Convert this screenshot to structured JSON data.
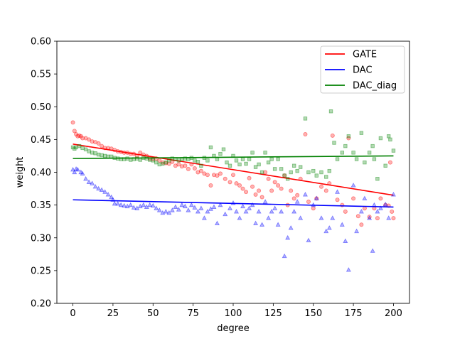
{
  "chart_data": {
    "type": "scatter",
    "title": "",
    "xlabel": "degree",
    "ylabel": "weight",
    "xlim": [
      -10,
      210
    ],
    "ylim": [
      0.2,
      0.6
    ],
    "xticks": [
      "0",
      "25",
      "50",
      "75",
      "100",
      "125",
      "150",
      "175",
      "200"
    ],
    "yticks": [
      "0.20",
      "0.25",
      "0.30",
      "0.35",
      "0.40",
      "0.45",
      "0.50",
      "0.55",
      "0.60"
    ],
    "legend_position": "top-right",
    "series": [
      {
        "name": "GATE",
        "color": "#ff0000",
        "marker": "circle",
        "trend": [
          [
            0,
            0.443
          ],
          [
            200,
            0.365
          ]
        ],
        "points": [
          [
            0,
            0.476
          ],
          [
            1,
            0.463
          ],
          [
            2,
            0.458
          ],
          [
            3,
            0.455
          ],
          [
            4,
            0.456
          ],
          [
            5,
            0.455
          ],
          [
            6,
            0.452
          ],
          [
            8,
            0.452
          ],
          [
            10,
            0.45
          ],
          [
            12,
            0.447
          ],
          [
            14,
            0.446
          ],
          [
            16,
            0.444
          ],
          [
            18,
            0.44
          ],
          [
            20,
            0.437
          ],
          [
            22,
            0.437
          ],
          [
            24,
            0.436
          ],
          [
            26,
            0.434
          ],
          [
            28,
            0.432
          ],
          [
            30,
            0.431
          ],
          [
            32,
            0.43
          ],
          [
            34,
            0.43
          ],
          [
            36,
            0.428
          ],
          [
            38,
            0.428
          ],
          [
            40,
            0.425
          ],
          [
            42,
            0.43
          ],
          [
            44,
            0.427
          ],
          [
            46,
            0.425
          ],
          [
            48,
            0.421
          ],
          [
            50,
            0.42
          ],
          [
            52,
            0.421
          ],
          [
            54,
            0.418
          ],
          [
            56,
            0.415
          ],
          [
            58,
            0.414
          ],
          [
            60,
            0.413
          ],
          [
            62,
            0.416
          ],
          [
            64,
            0.41
          ],
          [
            66,
            0.412
          ],
          [
            68,
            0.409
          ],
          [
            70,
            0.41
          ],
          [
            72,
            0.405
          ],
          [
            74,
            0.412
          ],
          [
            76,
            0.406
          ],
          [
            78,
            0.4
          ],
          [
            80,
            0.402
          ],
          [
            82,
            0.398
          ],
          [
            84,
            0.396
          ],
          [
            86,
            0.38
          ],
          [
            88,
            0.396
          ],
          [
            90,
            0.395
          ],
          [
            92,
            0.398
          ],
          [
            95,
            0.39
          ],
          [
            98,
            0.385
          ],
          [
            100,
            0.396
          ],
          [
            102,
            0.383
          ],
          [
            104,
            0.38
          ],
          [
            106,
            0.375
          ],
          [
            108,
            0.37
          ],
          [
            110,
            0.391
          ],
          [
            112,
            0.378
          ],
          [
            114,
            0.366
          ],
          [
            116,
            0.372
          ],
          [
            118,
            0.362
          ],
          [
            120,
            0.4
          ],
          [
            122,
            0.39
          ],
          [
            124,
            0.372
          ],
          [
            126,
            0.385
          ],
          [
            128,
            0.38
          ],
          [
            130,
            0.375
          ],
          [
            132,
            0.395
          ],
          [
            134,
            0.35
          ],
          [
            136,
            0.372
          ],
          [
            138,
            0.36
          ],
          [
            140,
            0.365
          ],
          [
            142,
            0.39
          ],
          [
            145,
            0.458
          ],
          [
            147,
            0.355
          ],
          [
            150,
            0.345
          ],
          [
            152,
            0.36
          ],
          [
            155,
            0.378
          ],
          [
            158,
            0.372
          ],
          [
            160,
            0.383
          ],
          [
            162,
            0.456
          ],
          [
            165,
            0.358
          ],
          [
            168,
            0.35
          ],
          [
            170,
            0.34
          ],
          [
            172,
            0.452
          ],
          [
            175,
            0.36
          ],
          [
            178,
            0.333
          ],
          [
            180,
            0.32
          ],
          [
            182,
            0.345
          ],
          [
            185,
            0.332
          ],
          [
            188,
            0.345
          ],
          [
            190,
            0.33
          ],
          [
            192,
            0.36
          ],
          [
            195,
            0.35
          ],
          [
            197,
            0.349
          ],
          [
            198,
            0.415
          ],
          [
            199,
            0.34
          ],
          [
            200,
            0.33
          ]
        ]
      },
      {
        "name": "DAC",
        "color": "#0000ff",
        "marker": "triangle",
        "trend": [
          [
            0,
            0.358
          ],
          [
            200,
            0.347
          ]
        ],
        "points": [
          [
            0,
            0.404
          ],
          [
            1,
            0.4
          ],
          [
            2,
            0.405
          ],
          [
            3,
            0.404
          ],
          [
            5,
            0.4
          ],
          [
            6,
            0.398
          ],
          [
            8,
            0.39
          ],
          [
            10,
            0.385
          ],
          [
            12,
            0.383
          ],
          [
            14,
            0.378
          ],
          [
            16,
            0.375
          ],
          [
            18,
            0.373
          ],
          [
            20,
            0.37
          ],
          [
            22,
            0.366
          ],
          [
            24,
            0.362
          ],
          [
            25,
            0.358
          ],
          [
            26,
            0.352
          ],
          [
            28,
            0.352
          ],
          [
            30,
            0.35
          ],
          [
            32,
            0.349
          ],
          [
            34,
            0.348
          ],
          [
            36,
            0.35
          ],
          [
            38,
            0.346
          ],
          [
            40,
            0.345
          ],
          [
            42,
            0.348
          ],
          [
            44,
            0.35
          ],
          [
            46,
            0.347
          ],
          [
            48,
            0.35
          ],
          [
            50,
            0.349
          ],
          [
            52,
            0.345
          ],
          [
            54,
            0.342
          ],
          [
            56,
            0.338
          ],
          [
            58,
            0.34
          ],
          [
            60,
            0.338
          ],
          [
            62,
            0.342
          ],
          [
            64,
            0.347
          ],
          [
            66,
            0.343
          ],
          [
            68,
            0.35
          ],
          [
            70,
            0.348
          ],
          [
            72,
            0.342
          ],
          [
            74,
            0.35
          ],
          [
            76,
            0.346
          ],
          [
            78,
            0.34
          ],
          [
            80,
            0.345
          ],
          [
            82,
            0.33
          ],
          [
            84,
            0.34
          ],
          [
            86,
            0.344
          ],
          [
            88,
            0.347
          ],
          [
            90,
            0.322
          ],
          [
            92,
            0.35
          ],
          [
            95,
            0.336
          ],
          [
            98,
            0.345
          ],
          [
            100,
            0.353
          ],
          [
            102,
            0.34
          ],
          [
            104,
            0.33
          ],
          [
            106,
            0.348
          ],
          [
            108,
            0.34
          ],
          [
            110,
            0.345
          ],
          [
            112,
            0.35
          ],
          [
            114,
            0.322
          ],
          [
            116,
            0.34
          ],
          [
            118,
            0.32
          ],
          [
            120,
            0.355
          ],
          [
            122,
            0.33
          ],
          [
            124,
            0.34
          ],
          [
            126,
            0.345
          ],
          [
            128,
            0.32
          ],
          [
            130,
            0.34
          ],
          [
            132,
            0.272
          ],
          [
            134,
            0.3
          ],
          [
            136,
            0.315
          ],
          [
            138,
            0.34
          ],
          [
            140,
            0.355
          ],
          [
            142,
            0.33
          ],
          [
            145,
            0.366
          ],
          [
            147,
            0.296
          ],
          [
            150,
            0.35
          ],
          [
            152,
            0.36
          ],
          [
            155,
            0.33
          ],
          [
            158,
            0.31
          ],
          [
            160,
            0.315
          ],
          [
            162,
            0.33
          ],
          [
            165,
            0.37
          ],
          [
            168,
            0.32
          ],
          [
            170,
            0.295
          ],
          [
            172,
            0.251
          ],
          [
            175,
            0.38
          ],
          [
            177,
            0.31
          ],
          [
            180,
            0.34
          ],
          [
            182,
            0.36
          ],
          [
            185,
            0.33
          ],
          [
            187,
            0.28
          ],
          [
            188,
            0.35
          ],
          [
            190,
            0.34
          ],
          [
            192,
            0.345
          ],
          [
            195,
            0.351
          ],
          [
            197,
            0.33
          ],
          [
            200,
            0.366
          ]
        ]
      },
      {
        "name": "DAC_diag",
        "color": "#008000",
        "marker": "square",
        "trend": [
          [
            0,
            0.421
          ],
          [
            200,
            0.425
          ]
        ],
        "points": [
          [
            0,
            0.438
          ],
          [
            1,
            0.436
          ],
          [
            2,
            0.438
          ],
          [
            4,
            0.44
          ],
          [
            6,
            0.437
          ],
          [
            8,
            0.435
          ],
          [
            10,
            0.432
          ],
          [
            12,
            0.43
          ],
          [
            14,
            0.429
          ],
          [
            16,
            0.427
          ],
          [
            18,
            0.426
          ],
          [
            20,
            0.425
          ],
          [
            22,
            0.424
          ],
          [
            24,
            0.424
          ],
          [
            26,
            0.422
          ],
          [
            28,
            0.421
          ],
          [
            30,
            0.42
          ],
          [
            32,
            0.42
          ],
          [
            34,
            0.421
          ],
          [
            36,
            0.419
          ],
          [
            38,
            0.42
          ],
          [
            40,
            0.421
          ],
          [
            42,
            0.419
          ],
          [
            44,
            0.422
          ],
          [
            46,
            0.421
          ],
          [
            48,
            0.419
          ],
          [
            50,
            0.418
          ],
          [
            52,
            0.415
          ],
          [
            54,
            0.412
          ],
          [
            56,
            0.413
          ],
          [
            58,
            0.415
          ],
          [
            60,
            0.418
          ],
          [
            62,
            0.421
          ],
          [
            64,
            0.42
          ],
          [
            66,
            0.418
          ],
          [
            68,
            0.42
          ],
          [
            70,
            0.421
          ],
          [
            72,
            0.42
          ],
          [
            74,
            0.422
          ],
          [
            76,
            0.418
          ],
          [
            78,
            0.416
          ],
          [
            80,
            0.41
          ],
          [
            82,
            0.422
          ],
          [
            84,
            0.418
          ],
          [
            86,
            0.438
          ],
          [
            88,
            0.425
          ],
          [
            90,
            0.42
          ],
          [
            92,
            0.428
          ],
          [
            94,
            0.435
          ],
          [
            96,
            0.415
          ],
          [
            98,
            0.41
          ],
          [
            100,
            0.425
          ],
          [
            102,
            0.418
          ],
          [
            104,
            0.412
          ],
          [
            106,
            0.42
          ],
          [
            108,
            0.413
          ],
          [
            110,
            0.42
          ],
          [
            112,
            0.43
          ],
          [
            114,
            0.408
          ],
          [
            116,
            0.412
          ],
          [
            118,
            0.4
          ],
          [
            120,
            0.43
          ],
          [
            122,
            0.415
          ],
          [
            124,
            0.42
          ],
          [
            126,
            0.405
          ],
          [
            128,
            0.42
          ],
          [
            130,
            0.405
          ],
          [
            132,
            0.395
          ],
          [
            134,
            0.39
          ],
          [
            136,
            0.4
          ],
          [
            138,
            0.41
          ],
          [
            140,
            0.402
          ],
          [
            142,
            0.408
          ],
          [
            145,
            0.482
          ],
          [
            147,
            0.4
          ],
          [
            150,
            0.402
          ],
          [
            152,
            0.395
          ],
          [
            155,
            0.4
          ],
          [
            158,
            0.393
          ],
          [
            160,
            0.402
          ],
          [
            161,
            0.493
          ],
          [
            163,
            0.445
          ],
          [
            165,
            0.42
          ],
          [
            168,
            0.43
          ],
          [
            170,
            0.44
          ],
          [
            172,
            0.455
          ],
          [
            175,
            0.43
          ],
          [
            177,
            0.42
          ],
          [
            180,
            0.46
          ],
          [
            182,
            0.415
          ],
          [
            185,
            0.43
          ],
          [
            187,
            0.44
          ],
          [
            188,
            0.42
          ],
          [
            190,
            0.39
          ],
          [
            192,
            0.452
          ],
          [
            195,
            0.41
          ],
          [
            197,
            0.455
          ],
          [
            198,
            0.45
          ],
          [
            200,
            0.433
          ]
        ]
      }
    ]
  }
}
